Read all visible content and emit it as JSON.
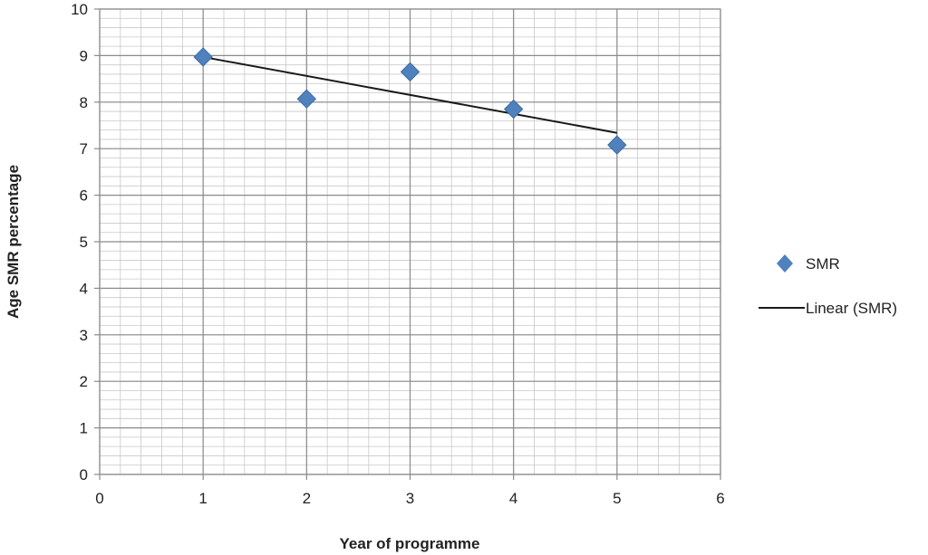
{
  "chart_data": {
    "type": "scatter",
    "xlabel": "Year  of  programme",
    "ylabel": "Age SMR  percentage",
    "xlim": [
      0,
      6
    ],
    "ylim": [
      0,
      10
    ],
    "x_ticks": [
      "0",
      "1",
      "2",
      "3",
      "4",
      "5",
      "6"
    ],
    "y_ticks": [
      "0",
      "1",
      "2",
      "3",
      "4",
      "5",
      "6",
      "7",
      "8",
      "9",
      "10"
    ],
    "grid": true,
    "legend_position": "right",
    "series": [
      {
        "name": "SMR",
        "kind": "scatter",
        "marker": "diamond",
        "color": "#4F81BD",
        "x": [
          1,
          2,
          3,
          4,
          5
        ],
        "y": [
          8.97,
          8.07,
          8.65,
          7.85,
          7.08
        ]
      },
      {
        "name": "Linear (SMR)",
        "kind": "trendline",
        "color": "#1a1a1a",
        "x": [
          1,
          5
        ],
        "y": [
          8.97,
          7.34
        ]
      }
    ]
  }
}
